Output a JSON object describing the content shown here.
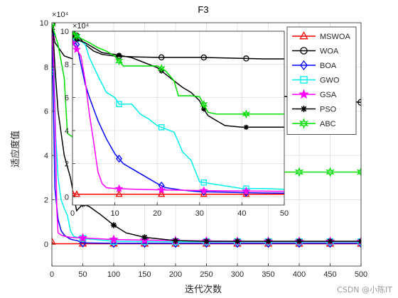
{
  "chart_data": {
    "type": "line",
    "title": "F3",
    "xlabel": "迭代次数",
    "ylabel": "适应度值",
    "y_exponent": "×10⁴",
    "xlim": [
      0,
      500
    ],
    "ylim": [
      -1,
      10
    ],
    "x_ticks": [
      "0",
      "50",
      "100",
      "150",
      "200",
      "250",
      "300",
      "350",
      "400",
      "450",
      "500"
    ],
    "y_ticks": [
      "0",
      "2",
      "4",
      "6",
      "8",
      "10"
    ],
    "grid": true,
    "legend_position": "top-right",
    "series": [
      {
        "name": "MSWOA",
        "color": "#ff0000",
        "marker": "triangle",
        "x": [
          0,
          2,
          5,
          10,
          50,
          100,
          150,
          200,
          250,
          300,
          350,
          400,
          450,
          500
        ],
        "y": [
          0.1,
          0.02,
          0.01,
          0.01,
          0.01,
          0.01,
          0.01,
          0.01,
          0.01,
          0.01,
          0.01,
          0.01,
          0.01,
          0.01
        ]
      },
      {
        "name": "WOA",
        "color": "#000000",
        "marker": "circle",
        "x": [
          0,
          2,
          5,
          20,
          40,
          100,
          200,
          300,
          400,
          500
        ],
        "y": [
          9.95,
          9.6,
          9.1,
          8.5,
          8.3,
          7.9,
          7.2,
          6.9,
          6.6,
          6.4
        ]
      },
      {
        "name": "BOA",
        "color": "#0000ff",
        "marker": "diamond",
        "x": [
          0,
          2,
          5,
          10,
          15,
          20,
          25,
          30,
          35,
          40,
          50,
          100,
          200,
          300,
          400,
          500
        ],
        "y": [
          9.5,
          7.0,
          2.5,
          1.1,
          0.6,
          0.4,
          0.3,
          0.22,
          0.18,
          0.16,
          0.05,
          0.03,
          0.03,
          0.03,
          0.03,
          0.03
        ]
      },
      {
        "name": "GWO",
        "color": "#00eeee",
        "marker": "square",
        "x": [
          0,
          2,
          4,
          6,
          8,
          10,
          15,
          20,
          25,
          30,
          35,
          40,
          45,
          50,
          100,
          200,
          300,
          400,
          500
        ],
        "y": [
          7.8,
          7.8,
          7.6,
          5.0,
          4.0,
          3.0,
          2.0,
          1.6,
          1.3,
          0.6,
          0.35,
          0.3,
          0.28,
          0.25,
          0.12,
          0.1,
          0.1,
          0.1,
          0.1
        ]
      },
      {
        "name": "GSA",
        "color": "#ff00ff",
        "marker": "star",
        "x": [
          0,
          2,
          5,
          8,
          10,
          15,
          20,
          30,
          40,
          50,
          100,
          200,
          300,
          400,
          500
        ],
        "y": [
          9.3,
          8.9,
          6.0,
          1.5,
          0.5,
          0.4,
          0.35,
          0.3,
          0.28,
          0.27,
          0.2,
          0.15,
          0.12,
          0.12,
          0.12
        ]
      },
      {
        "name": "PSO",
        "color": "#000000",
        "marker": "asterisk",
        "x": [
          0,
          2,
          5,
          10,
          20,
          30,
          40,
          50,
          60,
          80,
          100,
          120,
          150,
          200,
          250,
          300,
          400,
          500
        ],
        "y": [
          9.7,
          9.5,
          8.0,
          6.0,
          4.0,
          3.0,
          1.5,
          1.8,
          1.7,
          1.3,
          0.85,
          0.5,
          0.3,
          0.15,
          0.12,
          0.12,
          0.12,
          0.12
        ]
      },
      {
        "name": "ABC",
        "color": "#00dd00",
        "marker": "hexagram",
        "x": [
          0,
          10,
          20,
          25,
          30,
          35,
          45,
          50,
          100,
          150,
          200,
          250,
          300,
          350,
          400,
          450,
          500
        ],
        "y": [
          9.95,
          9.0,
          7.5,
          5.0,
          4.9,
          4.8,
          4.6,
          3.3,
          3.3,
          3.3,
          3.25,
          3.25,
          3.25,
          3.25,
          3.25,
          3.25,
          3.25
        ]
      }
    ],
    "inset": {
      "xlim": [
        0,
        50
      ],
      "ylim": [
        -0.5,
        10
      ],
      "x_ticks": [
        "0",
        "10",
        "20",
        "30",
        "40",
        "50"
      ],
      "y_ticks": [
        "0",
        "2",
        "4",
        "6",
        "8",
        "10"
      ],
      "y_exponent": "×10⁴",
      "series": [
        {
          "name": "MSWOA",
          "x": [
            0,
            1,
            50
          ],
          "y": [
            0.2,
            0.15,
            0.15
          ]
        },
        {
          "name": "WOA",
          "x": [
            0,
            2,
            3,
            5,
            7,
            10,
            15,
            20,
            30,
            40,
            45,
            50
          ],
          "y": [
            9.95,
            9.5,
            9.2,
            8.8,
            8.6,
            8.5,
            8.45,
            8.42,
            8.42,
            8.36,
            8.33,
            8.33
          ]
        },
        {
          "name": "BOA",
          "x": [
            0,
            1,
            2,
            3,
            4,
            6,
            8,
            10,
            12,
            14,
            16,
            18,
            20,
            22,
            26,
            30,
            35,
            40,
            45,
            50
          ],
          "y": [
            9.5,
            9.2,
            8.0,
            6.8,
            6.0,
            4.6,
            3.5,
            2.6,
            2.0,
            1.7,
            1.4,
            1.1,
            0.8,
            0.55,
            0.4,
            0.3,
            0.28,
            0.25,
            0.23,
            0.22
          ]
        },
        {
          "name": "GWO",
          "x": [
            0,
            2,
            3,
            4,
            6,
            8,
            10,
            11,
            14,
            16,
            18,
            20,
            22,
            24,
            26,
            28,
            30,
            35,
            40,
            45,
            50
          ],
          "y": [
            9.7,
            9.4,
            9.2,
            8.4,
            7.3,
            6.3,
            6.0,
            5.6,
            5.6,
            5.0,
            4.7,
            4.3,
            4.1,
            3.9,
            2.7,
            2.2,
            0.9,
            0.7,
            0.5,
            0.5,
            0.45
          ]
        },
        {
          "name": "GSA",
          "x": [
            0,
            1,
            2,
            3,
            4,
            5,
            6,
            7,
            8,
            10,
            15,
            20,
            25,
            30,
            35,
            40,
            45,
            50
          ],
          "y": [
            9.3,
            8.9,
            8.5,
            7.0,
            5.0,
            3.3,
            1.5,
            0.8,
            0.55,
            0.5,
            0.45,
            0.42,
            0.4,
            0.38,
            0.36,
            0.35,
            0.34,
            0.33
          ]
        },
        {
          "name": "PSO",
          "x": [
            0,
            1,
            3,
            5,
            7,
            10,
            14,
            16,
            18,
            20,
            22,
            24,
            26,
            28,
            30,
            31,
            32,
            34,
            36,
            40,
            45,
            50
          ],
          "y": [
            9.7,
            9.5,
            9.3,
            9.0,
            8.7,
            8.6,
            8.4,
            8.2,
            8.0,
            7.8,
            7.4,
            7.0,
            6.6,
            6.3,
            5.8,
            5.3,
            4.9,
            4.6,
            4.3,
            4.2,
            4.2,
            4.2
          ]
        },
        {
          "name": "ABC",
          "x": [
            0,
            1,
            4,
            6,
            8,
            10,
            12,
            16,
            20,
            22,
            23,
            24,
            25,
            26,
            28,
            30,
            32,
            34,
            35,
            40,
            45,
            50
          ],
          "y": [
            9.95,
            9.7,
            9.3,
            9.0,
            8.8,
            8.5,
            7.9,
            7.9,
            7.9,
            7.6,
            7.3,
            7.0,
            6.1,
            6.1,
            6.1,
            6.05,
            5.1,
            5.0,
            5.0,
            5.0,
            5.0,
            5.0
          ]
        }
      ]
    }
  },
  "watermark": "CSDN @小陈IT"
}
